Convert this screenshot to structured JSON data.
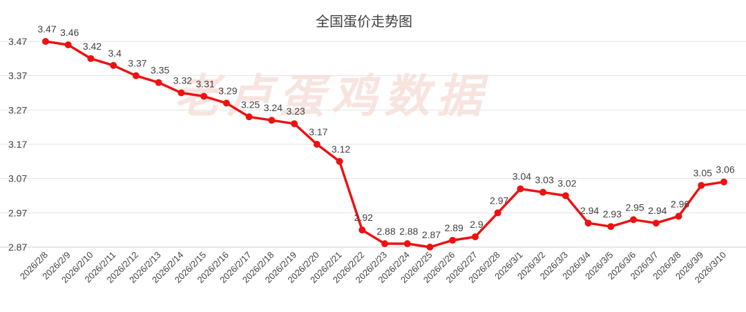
{
  "watermark": "老卢蛋鸡数据",
  "chart_data": {
    "type": "line",
    "title": "全国蛋价走势图",
    "xlabel": "",
    "ylabel": "",
    "categories": [
      "2026/2/8",
      "2026/2/9",
      "2026/2/10",
      "2026/2/11",
      "2026/2/12",
      "2026/2/13",
      "2026/2/14",
      "2026/2/15",
      "2026/2/16",
      "2026/2/17",
      "2026/2/18",
      "2026/2/19",
      "2026/2/20",
      "2026/2/21",
      "2026/2/22",
      "2026/2/23",
      "2026/2/24",
      "2026/2/25",
      "2026/2/26",
      "2026/2/27",
      "2026/2/28",
      "2026/3/1",
      "2026/3/2",
      "2026/3/3",
      "2026/3/4",
      "2026/3/5",
      "2026/3/6",
      "2026/3/7",
      "2026/3/8",
      "2026/3/9",
      "2026/3/10"
    ],
    "series": [
      {
        "values": [
          3.47,
          3.46,
          3.42,
          3.4,
          3.37,
          3.35,
          3.32,
          3.31,
          3.29,
          3.25,
          3.24,
          3.23,
          3.17,
          3.12,
          2.92,
          2.88,
          2.88,
          2.87,
          2.89,
          2.9,
          2.97,
          3.04,
          3.03,
          3.02,
          2.94,
          2.93,
          2.95,
          2.94,
          2.96,
          3.05,
          3.06
        ],
        "labels": [
          "3.47",
          "3.46",
          "3.42",
          "3.4",
          "3.37",
          "3.35",
          "3.32",
          "3.31",
          "3.29",
          "3.25",
          "3.24",
          "3.23",
          "3.17",
          "3.12",
          "2.92",
          "2.88",
          "2.88",
          "2.87",
          "2.89",
          "2.9",
          "2.97",
          "3.04",
          "3.03",
          "3.02",
          "2.94",
          "2.93",
          "2.95",
          "2.94",
          "2.96",
          "3.05",
          "3.06"
        ]
      }
    ],
    "yticks": [
      "3.47",
      "3.37",
      "3.27",
      "3.17",
      "3.07",
      "2.97",
      "2.87"
    ],
    "ylim": [
      2.87,
      3.47
    ],
    "grid": true,
    "legend": "none",
    "line_color": "#ee1111"
  }
}
